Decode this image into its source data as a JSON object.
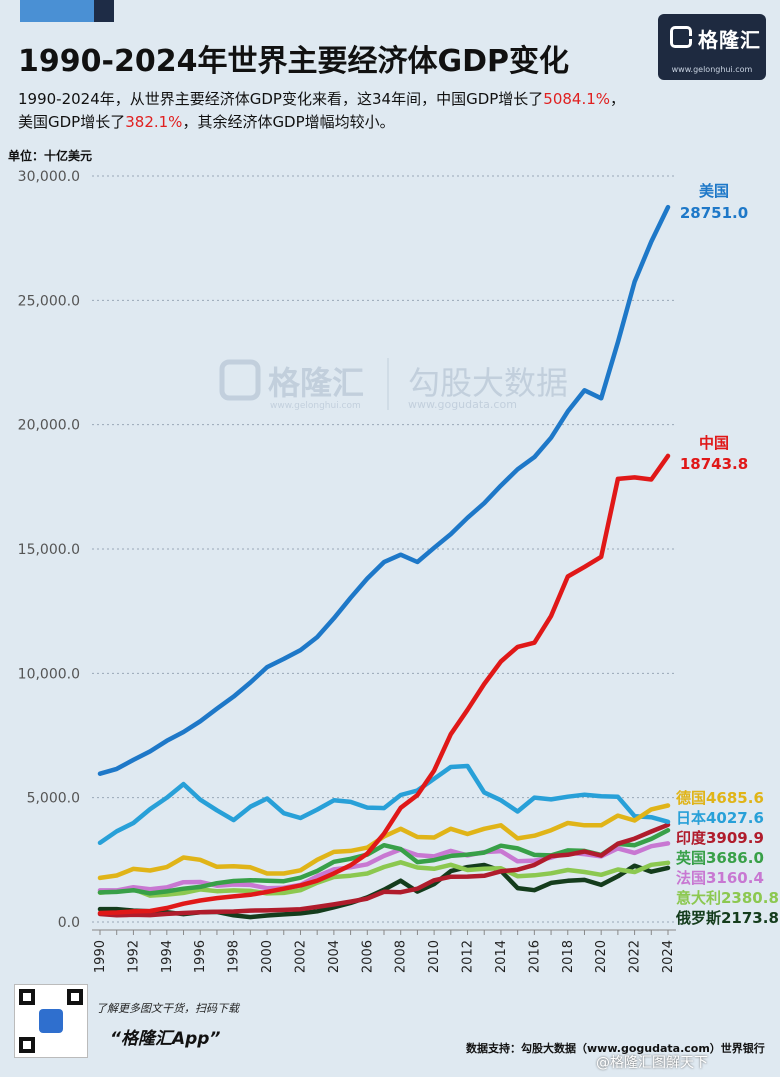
{
  "header": {
    "title": "1990-2024年世界主要经济体GDP变化",
    "desc_line1_a": "1990-2024年，从世界主要经济体GDP变化来看，这34年间，中国GDP增长了",
    "desc_line1_red": "5084.1%",
    "desc_line1_b": "，",
    "desc_line2_a": "美国GDP增长了",
    "desc_line2_red": "382.1%",
    "desc_line2_b": "，其余经济体GDP增幅均较小。",
    "unit": "单位：十亿美元"
  },
  "logo": {
    "name": "格隆汇",
    "url": "www.gelonghui.com"
  },
  "watermark": {
    "brand1": "格隆汇",
    "brand1_url": "www.gelonghui.com",
    "brand2": "勾股大数据",
    "brand2_url": "www.gogudata.com"
  },
  "footer": {
    "cta_line1": "了解更多图文干货，扫码下载",
    "cta_line2": "“格隆汇App”",
    "source": "数据支持：勾股大数据（www.gogudata.com）世界银行",
    "corner_watermark": "@格隆汇图解天下"
  },
  "chart_data": {
    "type": "line",
    "x": [
      1990,
      1991,
      1992,
      1993,
      1994,
      1995,
      1996,
      1997,
      1998,
      1999,
      2000,
      2001,
      2002,
      2003,
      2004,
      2005,
      2006,
      2007,
      2008,
      2009,
      2010,
      2011,
      2012,
      2013,
      2014,
      2015,
      2016,
      2017,
      2018,
      2019,
      2020,
      2021,
      2022,
      2023,
      2024
    ],
    "x_tick_labels": [
      "1990",
      "1992",
      "1994",
      "1996",
      "1998",
      "2000",
      "2002",
      "2004",
      "2006",
      "2008",
      "2010",
      "2012",
      "2014",
      "2016",
      "2018",
      "2020",
      "2022",
      "2024"
    ],
    "y_tick_labels": [
      "0.0",
      "5,000.0",
      "10,000.0",
      "15,000.0",
      "20,000.0",
      "25,000.0",
      "30,000.0"
    ],
    "ylim": [
      0,
      30000
    ],
    "grid": true,
    "series": [
      {
        "name": "俄罗斯",
        "end_label": "俄罗斯2173.8",
        "color": "#143c1c",
        "values": [
          517,
          518,
          460,
          435,
          395,
          313,
          392,
          405,
          271,
          196,
          260,
          307,
          345,
          430,
          591,
          764,
          990,
          1300,
          1661,
          1223,
          1525,
          2046,
          2208,
          2292,
          2059,
          1363,
          1277,
          1574,
          1657,
          1693,
          1493,
          1837,
          2266,
          2021,
          2173.8
        ]
      },
      {
        "name": "意大利",
        "end_label": "意大利2380.8",
        "color": "#8cc850",
        "values": [
          1180,
          1240,
          1320,
          1060,
          1100,
          1170,
          1310,
          1240,
          1270,
          1250,
          1150,
          1170,
          1280,
          1580,
          1810,
          1860,
          1950,
          2210,
          2400,
          2190,
          2140,
          2300,
          2090,
          2140,
          2160,
          1840,
          1880,
          1960,
          2090,
          2010,
          1900,
          2110,
          2010,
          2300,
          2380.8
        ]
      },
      {
        "name": "法国",
        "end_label": "法国3160.4",
        "color": "#c878d2",
        "values": [
          1270,
          1270,
          1400,
          1320,
          1390,
          1600,
          1610,
          1460,
          1510,
          1490,
          1360,
          1380,
          1490,
          1840,
          2120,
          2200,
          2320,
          2660,
          2920,
          2690,
          2640,
          2860,
          2680,
          2810,
          2850,
          2440,
          2470,
          2590,
          2790,
          2730,
          2640,
          2960,
          2780,
          3050,
          3160.4
        ]
      },
      {
        "name": "英国",
        "end_label": "英国3686.0",
        "color": "#38a048",
        "values": [
          1190,
          1210,
          1280,
          1150,
          1230,
          1340,
          1410,
          1560,
          1650,
          1680,
          1660,
          1640,
          1780,
          2050,
          2420,
          2540,
          2710,
          3090,
          2930,
          2410,
          2490,
          2660,
          2710,
          2790,
          3070,
          2960,
          2700,
          2680,
          2880,
          2860,
          2700,
          3140,
          3090,
          3340,
          3686.0
        ]
      },
      {
        "name": "印度",
        "end_label": "印度3909.9",
        "color": "#b01c2c",
        "values": [
          321,
          270,
          288,
          279,
          327,
          360,
          393,
          415,
          421,
          458,
          468,
          485,
          514,
          607,
          709,
          820,
          940,
          1216,
          1199,
          1341,
          1676,
          1823,
          1827,
          1857,
          2039,
          2103,
          2295,
          2651,
          2703,
          2836,
          2672,
          3150,
          3354,
          3640,
          3909.9
        ]
      },
      {
        "name": "日本",
        "end_label": "日本4027.6",
        "color": "#28a0d8",
        "values": [
          3185,
          3648,
          3980,
          4540,
          4998,
          5546,
          4923,
          4493,
          4098,
          4636,
          4968,
          4374,
          4183,
          4519,
          4893,
          4831,
          4601,
          4579,
          5106,
          5289,
          5759,
          6233,
          6272,
          5212,
          4897,
          4444,
          5003,
          4930,
          5040,
          5118,
          5055,
          5034,
          4256,
          4213,
          4027.6
        ]
      },
      {
        "name": "德国",
        "end_label": "德国4685.6",
        "color": "#e0b418",
        "values": [
          1772,
          1868,
          2134,
          2073,
          2206,
          2594,
          2503,
          2219,
          2243,
          2200,
          1950,
          1950,
          2080,
          2500,
          2820,
          2860,
          2990,
          3440,
          3750,
          3420,
          3400,
          3750,
          3540,
          3750,
          3890,
          3360,
          3470,
          3690,
          3980,
          3890,
          3890,
          4280,
          4080,
          4530,
          4685.6
        ]
      },
      {
        "name": "中国",
        "end_label": "18743.8",
        "color": "#e01818",
        "values": [
          361,
          383,
          427,
          444,
          564,
          734,
          864,
          962,
          1029,
          1094,
          1211,
          1339,
          1471,
          1660,
          1955,
          2286,
          2752,
          3550,
          4594,
          5102,
          6087,
          7552,
          8532,
          9570,
          10475,
          11062,
          11233,
          12310,
          13895,
          14280,
          14688,
          17820,
          17880,
          17795,
          18743.8
        ]
      },
      {
        "name": "美国",
        "end_label": "28751.0",
        "color": "#1e78c8",
        "values": [
          5963,
          6158,
          6520,
          6859,
          7287,
          7640,
          8073,
          8578,
          9063,
          9631,
          10251,
          10582,
          10936,
          11458,
          12214,
          13037,
          13815,
          14475,
          14770,
          14478,
          15049,
          15600,
          16254,
          16843,
          17551,
          18206,
          18695,
          19477,
          20533,
          21381,
          21060,
          23315,
          25744,
          27361,
          28751.0
        ]
      }
    ]
  }
}
